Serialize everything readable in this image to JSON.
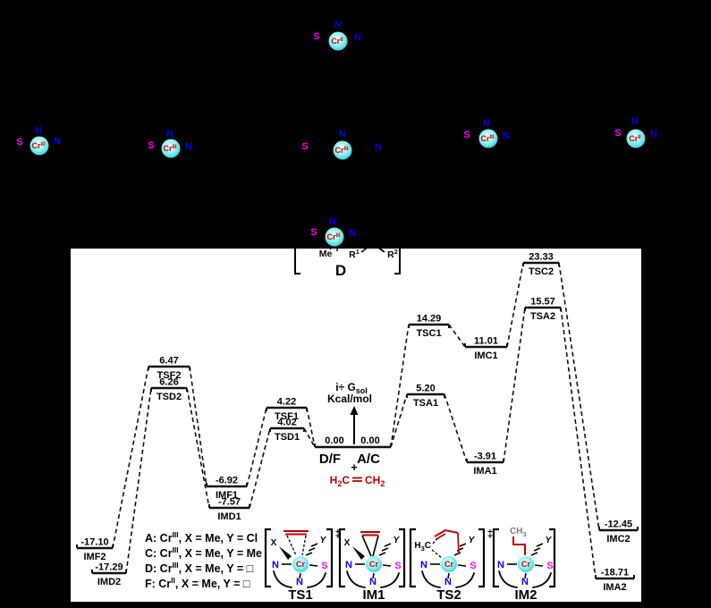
{
  "colors": {
    "background": "#000000",
    "panel": "#ffffff",
    "line": "#111111",
    "nitrogen": "#0000ee",
    "sulfur": "#ff00ff",
    "chromium_text": "#cc0000",
    "chromium_sphere": "#7ff0f0",
    "red_fragment": "#c00000",
    "gray_label": "#7a7a7a"
  },
  "axis": {
    "p1": "i÷ G",
    "sub": "sol",
    "line2": "Kcal/mol"
  },
  "chart_data": {
    "type": "line",
    "subtype": "reaction-energy-profile",
    "title": "",
    "ylabel": "i÷ Gsol Kcal/mol",
    "ylim": [
      -20,
      25
    ],
    "reference": {
      "value_left": "0.00",
      "value_right": "0.00",
      "left_label": "D/F",
      "right_label": "A/C",
      "plus": "+",
      "reactant": "H2C=CH2"
    },
    "levels": [
      {
        "id": "IMF2",
        "value": "-17.10",
        "name": "IMF2"
      },
      {
        "id": "IMD2",
        "value": "-17.29",
        "name": "IMD2"
      },
      {
        "id": "TSF2",
        "value": "6.47",
        "name": "TSF2"
      },
      {
        "id": "TSD2",
        "value": "6.26",
        "name": "TSD2"
      },
      {
        "id": "IMF1",
        "value": "-6.92",
        "name": "IMF1"
      },
      {
        "id": "IMD1",
        "value": "-7.57",
        "name": "IMD1"
      },
      {
        "id": "TSF1",
        "value": "4.22",
        "name": "TSF1"
      },
      {
        "id": "TSD1",
        "value": "4.02",
        "name": "TSD1"
      },
      {
        "id": "TSA1",
        "value": "5.20",
        "name": "TSA1"
      },
      {
        "id": "TSC1",
        "value": "14.29",
        "name": "TSC1"
      },
      {
        "id": "IMC1",
        "value": "11.01",
        "name": "IMC1"
      },
      {
        "id": "IMA1",
        "value": "-3.91",
        "name": "IMA1"
      },
      {
        "id": "TSA2",
        "value": "15.57",
        "name": "TSA2"
      },
      {
        "id": "TSC2",
        "value": "23.33",
        "name": "TSC2"
      },
      {
        "id": "IMC2",
        "value": "-12.45",
        "name": "IMC2"
      },
      {
        "id": "IMA2",
        "value": "-18.71",
        "name": "IMA2"
      }
    ],
    "series": [
      {
        "name": "A",
        "points": [
          [
            "A/C",
            0.0
          ],
          [
            "TSA1",
            5.2
          ],
          [
            "IMA1",
            -3.91
          ],
          [
            "TSA2",
            15.57
          ],
          [
            "IMA2",
            -18.71
          ]
        ]
      },
      {
        "name": "C",
        "points": [
          [
            "A/C",
            0.0
          ],
          [
            "TSC1",
            14.29
          ],
          [
            "IMC1",
            11.01
          ],
          [
            "TSC2",
            23.33
          ],
          [
            "IMC2",
            -12.45
          ]
        ]
      },
      {
        "name": "D",
        "points": [
          [
            "D/F",
            0.0
          ],
          [
            "TSD1",
            4.02
          ],
          [
            "IMD1",
            -7.57
          ],
          [
            "TSD2",
            6.26
          ],
          [
            "IMD2",
            -17.29
          ]
        ]
      },
      {
        "name": "F",
        "points": [
          [
            "D/F",
            0.0
          ],
          [
            "TSF1",
            4.22
          ],
          [
            "IMF1",
            -6.92
          ],
          [
            "TSF2",
            6.47
          ],
          [
            "IMF2",
            -17.1
          ]
        ]
      }
    ]
  },
  "ethylene": {
    "h": "H",
    "h_sub": "2",
    "c": "C",
    "ch": "CH",
    "ch_sub": "2"
  },
  "legend": {
    "rows": [
      {
        "prefix": "A: Cr",
        "sup": "III",
        "suffix": ", X = Me, Y = Cl"
      },
      {
        "prefix": "C: Cr",
        "sup": "III",
        "suffix": ", X = Me, Y = Me"
      },
      {
        "prefix": "D: Cr",
        "sup": "III",
        "suffix": ", X = Me, Y = □"
      },
      {
        "prefix": "F: Cr",
        "sup": "II",
        "suffix": ",  X = Me, Y = □"
      }
    ]
  },
  "species_d": {
    "me": "Me",
    "r1_base": "R",
    "r1_sup": "1",
    "r2_base": "R",
    "r2_sup": "2",
    "label": "D"
  },
  "molecule_markers": [
    {
      "id": "top-center",
      "s": "S",
      "n_top": "N",
      "n_right": "N",
      "cr": "Cr",
      "ox": "II"
    },
    {
      "id": "row-left-1",
      "s": "S",
      "n_top": "N",
      "n_right": "N",
      "cr": "Cr",
      "ox": "III"
    },
    {
      "id": "row-left-2",
      "s": "S",
      "n_top": "N",
      "n_right": "N",
      "cr": "Cr",
      "ox": "III"
    },
    {
      "id": "row-center",
      "s": "S",
      "n_top": "N",
      "n_right": "N",
      "cr": "Cr",
      "ox": "III"
    },
    {
      "id": "row-right-1",
      "s": "S",
      "n_top": "N",
      "n_right": "N",
      "cr": "Cr",
      "ox": "III"
    },
    {
      "id": "row-right-2",
      "s": "S",
      "n_top": "N",
      "n_right": "N",
      "cr": "Cr",
      "ox": "II"
    },
    {
      "id": "species-d-complex",
      "s": "S",
      "n_top": "N",
      "n_right": "N",
      "cr": "Cr",
      "ox": "III"
    }
  ],
  "structures": [
    {
      "id": "TS1",
      "label": "TS1",
      "dagger": "‡",
      "x_label": "X",
      "y_label": "Y",
      "n_left": "N",
      "n_bottom": "N",
      "s": "S",
      "cr": "Cr"
    },
    {
      "id": "IM1",
      "label": "IM1",
      "dagger": "",
      "x_label": "X",
      "y_label": "Y",
      "n_left": "N",
      "n_bottom": "N",
      "s": "S",
      "cr": "Cr"
    },
    {
      "id": "TS2",
      "label": "TS2",
      "dagger": "‡",
      "x_label_pre": "H",
      "x_label_sub": "3",
      "x_label_post": "C",
      "y_label": "Y",
      "n_left": "N",
      "n_bottom": "N",
      "s": "S",
      "cr": "Cr"
    },
    {
      "id": "IM2",
      "label": "IM2",
      "dagger": "",
      "top_label_pre": "CH",
      "top_label_sub": "3",
      "y_label": "Y",
      "n_left": "N",
      "n_bottom": "N",
      "s": "S",
      "cr": "Cr"
    }
  ]
}
